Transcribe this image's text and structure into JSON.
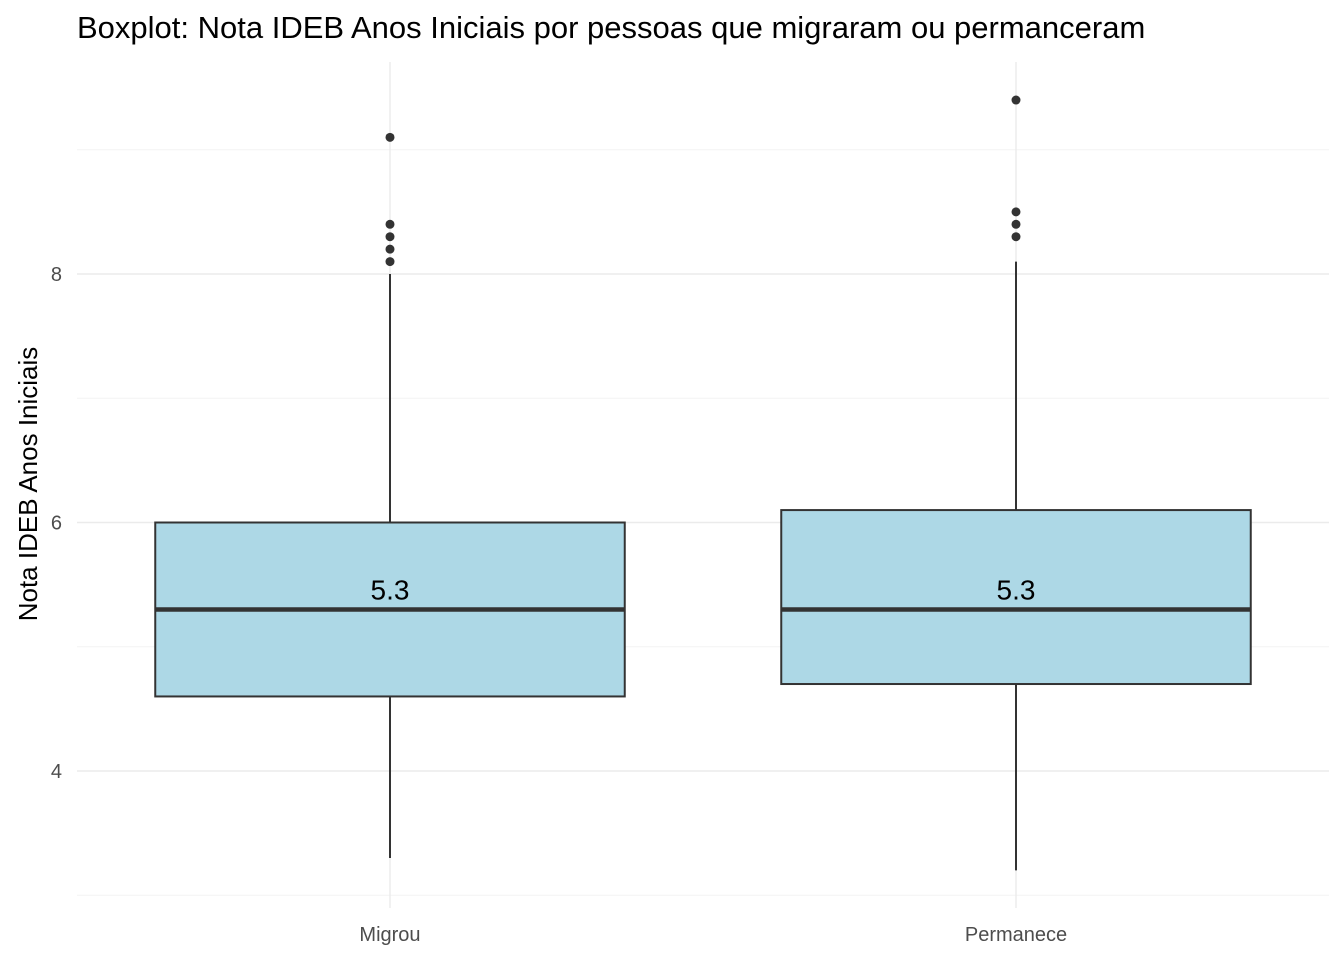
{
  "chart_data": {
    "type": "boxplot",
    "title": "Boxplot: Nota IDEB Anos Iniciais por pessoas que migraram ou permanceram",
    "xlabel": "",
    "ylabel": "Nota IDEB Anos Iniciais",
    "ylim": [
      2.9,
      9.8
    ],
    "y_ticks": [
      4,
      6,
      8
    ],
    "categories": [
      "Migrou",
      "Permanece"
    ],
    "fill_color": "#add8e6",
    "line_color": "#333333",
    "grid": true,
    "legend": "none",
    "boxes": [
      {
        "category": "Migrou",
        "lower_whisker": 3.3,
        "q1": 4.6,
        "median": 5.3,
        "q3": 6.0,
        "upper_whisker": 8.0,
        "outliers": [
          8.1,
          8.2,
          8.3,
          8.4,
          9.1
        ],
        "median_label": "5.3"
      },
      {
        "category": "Permanece",
        "lower_whisker": 3.2,
        "q1": 4.7,
        "median": 5.3,
        "q3": 6.1,
        "upper_whisker": 8.1,
        "outliers": [
          8.3,
          8.4,
          8.5,
          9.4
        ],
        "median_label": "5.3"
      }
    ]
  }
}
